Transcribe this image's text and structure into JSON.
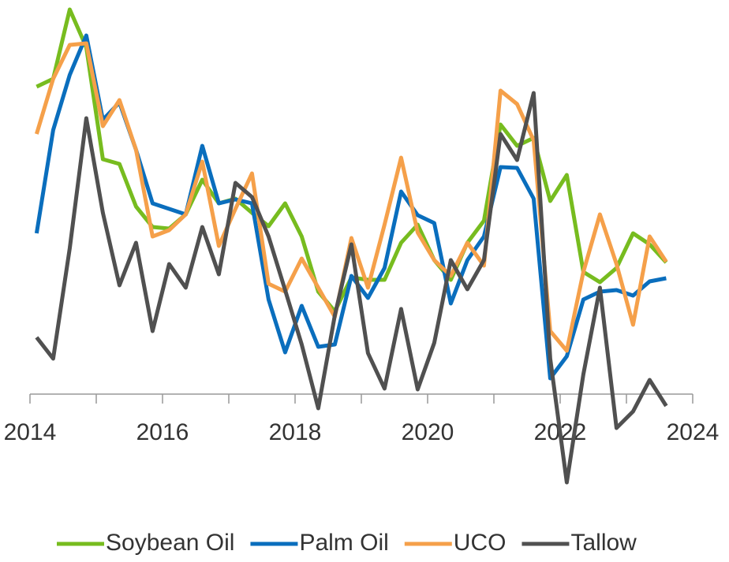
{
  "chart_data": {
    "type": "line",
    "x": [
      2014.1,
      2014.35,
      2014.6,
      2014.85,
      2015.1,
      2015.35,
      2015.6,
      2015.85,
      2016.1,
      2016.35,
      2016.6,
      2016.85,
      2017.1,
      2017.35,
      2017.6,
      2017.85,
      2018.1,
      2018.35,
      2018.6,
      2018.85,
      2019.1,
      2019.35,
      2019.6,
      2019.85,
      2020.1,
      2020.35,
      2020.6,
      2020.85,
      2021.1,
      2021.35,
      2021.6,
      2021.85,
      2022.1,
      2022.35,
      2022.6,
      2022.85,
      2023.1,
      2023.35,
      2023.6
    ],
    "series": [
      {
        "name": "Soybean Oil",
        "color": "#77bc1f",
        "values": [
          390,
          400,
          488,
          440,
          298,
          292,
          238,
          212,
          210,
          228,
          272,
          242,
          248,
          230,
          213,
          242,
          200,
          130,
          105,
          148,
          145,
          145,
          192,
          215,
          170,
          145,
          192,
          220,
          342,
          315,
          325,
          245,
          278,
          155,
          142,
          160,
          204,
          190,
          167
        ]
      },
      {
        "name": "Palm Oil",
        "color": "#0a6ebd",
        "values": [
          204,
          335,
          405,
          455,
          348,
          370,
          310,
          242,
          235,
          228,
          315,
          242,
          247,
          242,
          120,
          53,
          112,
          60,
          63,
          150,
          122,
          160,
          257,
          227,
          217,
          115,
          170,
          200,
          288,
          287,
          248,
          20,
          48,
          120,
          130,
          132,
          125,
          143,
          147
        ]
      },
      {
        "name": "UCO",
        "color": "#f5a04a",
        "values": [
          330,
          400,
          443,
          445,
          340,
          373,
          310,
          200,
          208,
          228,
          295,
          188,
          235,
          280,
          140,
          130,
          172,
          135,
          98,
          198,
          135,
          215,
          300,
          205,
          170,
          150,
          192,
          163,
          385,
          368,
          322,
          80,
          55,
          155,
          228,
          165,
          88,
          200,
          168
        ]
      },
      {
        "name": "Tallow",
        "color": "#505050",
        "values": [
          72,
          45,
          185,
          350,
          230,
          138,
          192,
          80,
          165,
          135,
          212,
          152,
          268,
          250,
          200,
          132,
          63,
          -18,
          100,
          190,
          52,
          7,
          108,
          6,
          65,
          170,
          133,
          170,
          330,
          297,
          382,
          45,
          -112,
          25,
          135,
          -43,
          -22,
          18,
          -15
        ]
      }
    ],
    "xlim": [
      2014,
      2024
    ],
    "xticks": [
      2014,
      2016,
      2018,
      2020,
      2022,
      2024
    ],
    "xminorticks": [
      2015,
      2017,
      2019,
      2021,
      2023
    ],
    "ylim": [
      -120,
      500
    ],
    "legend": "bottom"
  }
}
